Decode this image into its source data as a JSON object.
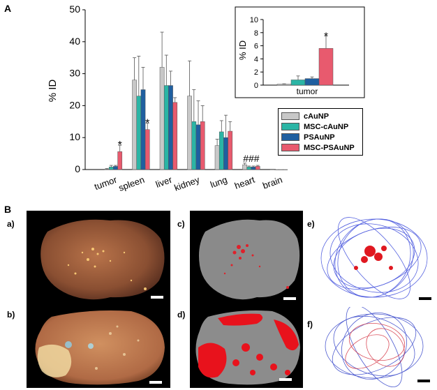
{
  "figure": {
    "panel_a_label": "A",
    "panel_b_label": "B",
    "image_labels": [
      "a)",
      "b)",
      "c)",
      "d)",
      "e)",
      "f)"
    ]
  },
  "chart_data": [
    {
      "type": "bar",
      "name": "main",
      "ylabel": "% ID",
      "xlabel": "",
      "ylim": [
        0,
        50
      ],
      "yticks": [
        0,
        10,
        20,
        30,
        40,
        50
      ],
      "categories": [
        "tumor",
        "spleen",
        "liver",
        "kidney",
        "lung",
        "heart",
        "brain"
      ],
      "series": [
        {
          "name": "cAuNP",
          "color": "#c8c8c8",
          "values": [
            0.1,
            28,
            32,
            23,
            7.5,
            1.5,
            0.1
          ],
          "errors": [
            0.2,
            7,
            11,
            11,
            2,
            0.5,
            0
          ]
        },
        {
          "name": "MSC-cAuNP",
          "color": "#2bb5a5",
          "values": [
            0.8,
            23,
            26.3,
            15,
            11.8,
            0.8,
            0
          ],
          "errors": [
            0.5,
            12.5,
            9.5,
            10,
            3.5,
            0.3,
            0
          ]
        },
        {
          "name": "PSAuNP",
          "color": "#1f5fa0",
          "values": [
            1.0,
            25,
            26.3,
            14,
            10,
            0.8,
            0
          ],
          "errors": [
            0.3,
            7,
            4.5,
            7.5,
            7,
            0.3,
            0
          ]
        },
        {
          "name": "MSC-PSAuNP",
          "color": "#e85a6e",
          "values": [
            5.6,
            12.5,
            21,
            15,
            12,
            1,
            0
          ],
          "errors": [
            2,
            2,
            1.5,
            5,
            3,
            0.3,
            0
          ]
        }
      ],
      "annotations": [
        {
          "category": "tumor",
          "series": "MSC-PSAuNP",
          "text": "*"
        },
        {
          "category": "spleen",
          "series": "MSC-PSAuNP",
          "text": "*"
        },
        {
          "category": "heart",
          "series": "all",
          "text": "###"
        }
      ],
      "legend": "right"
    },
    {
      "type": "bar",
      "name": "inset",
      "ylabel": "% ID",
      "xlabel": "tumor",
      "ylim": [
        0,
        10
      ],
      "yticks": [
        0,
        2,
        4,
        6,
        8,
        10
      ],
      "categories": [
        "tumor"
      ],
      "series": [
        {
          "name": "cAuNP",
          "color": "#c8c8c8",
          "values": [
            0.15
          ],
          "errors": [
            0.05
          ]
        },
        {
          "name": "MSC-cAuNP",
          "color": "#2bb5a5",
          "values": [
            0.8
          ],
          "errors": [
            0.6
          ]
        },
        {
          "name": "PSAuNP",
          "color": "#1f5fa0",
          "values": [
            1.0
          ],
          "errors": [
            0.25
          ]
        },
        {
          "name": "MSC-PSAuNP",
          "color": "#e85a6e",
          "values": [
            5.6
          ],
          "errors": [
            1.9
          ]
        }
      ],
      "annotations": [
        {
          "category": "tumor",
          "series": "MSC-PSAuNP",
          "text": "*"
        }
      ]
    }
  ]
}
